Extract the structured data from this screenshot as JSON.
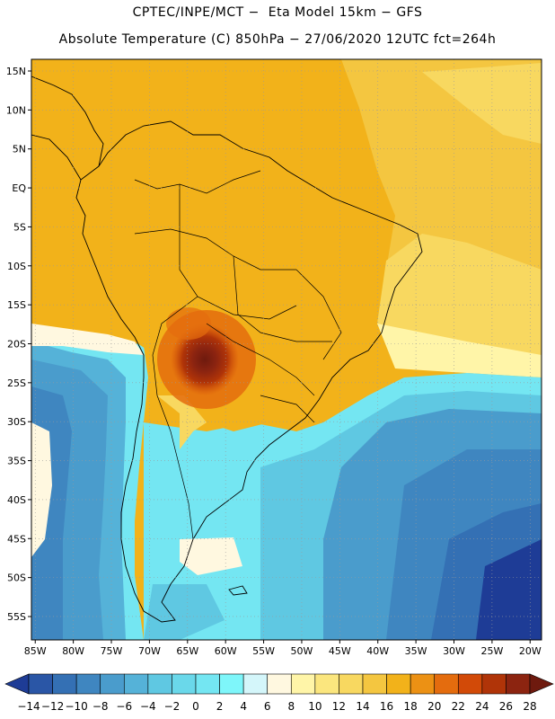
{
  "header": {
    "line1": "CPTEC/INPE/MCT −  Eta Model 15km − GFS",
    "line2": "Absolute Temperature (C) 850hPa − 27/06/2020 12UTC fct=264h"
  },
  "map": {
    "lat_labels": [
      "15N",
      "10N",
      "5N",
      "EQ",
      "5S",
      "10S",
      "15S",
      "20S",
      "25S",
      "30S",
      "35S",
      "40S",
      "45S",
      "50S",
      "55S"
    ],
    "lon_labels": [
      "85W",
      "80W",
      "75W",
      "70W",
      "65W",
      "60W",
      "55W",
      "50W",
      "45W",
      "40W",
      "35W",
      "30W",
      "25W",
      "20W"
    ],
    "lat_values": [
      15,
      10,
      5,
      0,
      -5,
      -10,
      -15,
      -20,
      -25,
      -30,
      -35,
      -40,
      -45,
      -50,
      -55
    ],
    "lon_values": [
      -85,
      -80,
      -75,
      -70,
      -65,
      -60,
      -55,
      -50,
      -45,
      -40,
      -35,
      -30,
      -25,
      -20
    ],
    "extent": {
      "lon_min": -85.5,
      "lon_max": -18.5,
      "lat_min": -58,
      "lat_max": 16.5
    },
    "grid": true,
    "hotspot": {
      "lon": -63.5,
      "lat": -22.5,
      "max_temp": 26
    }
  },
  "colorbar": {
    "labels": [
      "−14",
      "−12",
      "−10",
      "−8",
      "−6",
      "−4",
      "−2",
      "0",
      "2",
      "4",
      "6",
      "8",
      "10",
      "12",
      "14",
      "16",
      "18",
      "20",
      "22",
      "24",
      "26",
      "28"
    ],
    "values": [
      -14,
      -12,
      -10,
      -8,
      -6,
      -4,
      -2,
      0,
      2,
      4,
      6,
      8,
      10,
      12,
      14,
      16,
      18,
      20,
      22,
      24,
      26,
      28
    ],
    "colors": [
      "#1e3c96",
      "#2a56a6",
      "#3470b4",
      "#3f86c0",
      "#4a9ccc",
      "#55b2d8",
      "#5fc8e2",
      "#6ad8ea",
      "#74e6f2",
      "#7ef6fa",
      "#d4f6fa",
      "#fff8e0",
      "#fff5a8",
      "#fbe67e",
      "#f8d860",
      "#f4c640",
      "#f2b21a",
      "#ec9114",
      "#e46c0e",
      "#d24a08",
      "#b03408",
      "#8c2410",
      "#6e1a0e"
    ]
  }
}
